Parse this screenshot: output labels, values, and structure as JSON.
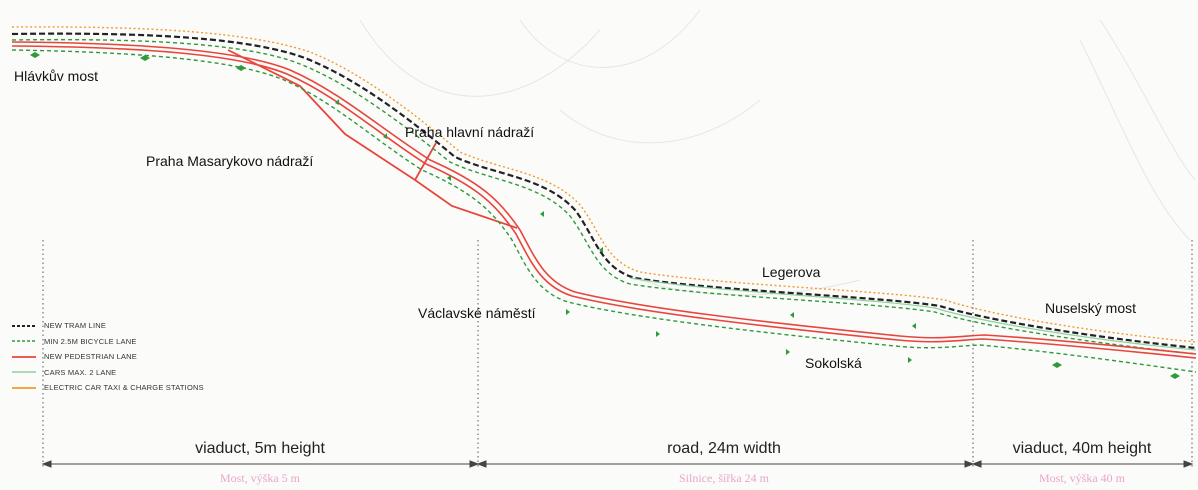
{
  "place_labels": {
    "hlavkuv_most": "Hlávkův most",
    "praha_hlavni": "Praha hlavní nádraží",
    "praha_masarykovo": "Praha Masarykovo nádraží",
    "vaclavske": "Václavské náměstí",
    "legerova": "Legerova",
    "nuselsky_most": "Nuselský most",
    "sokolska": "Sokolská"
  },
  "legend": [
    {
      "label": "NEW TRAM LINE",
      "style": "dashed",
      "color": "#222222"
    },
    {
      "label": "MIN 2.5M BICYCLE LANE",
      "style": "dashed",
      "color": "#2e9a3a"
    },
    {
      "label": "NEW PEDESTRIAN LANE",
      "style": "solid",
      "color": "#e8453c"
    },
    {
      "label": "CARS MAX. 2 LANE",
      "style": "solid",
      "color": "#8fd0a0"
    },
    {
      "label": "ELECTRIC CAR TAXI & CHARGE STATIONS",
      "style": "solid",
      "color": "#f39a2c"
    }
  ],
  "segments": [
    {
      "label": "viaduct, 5m height",
      "label_cz": "Most, výška 5 m"
    },
    {
      "label": "road, 24m width",
      "label_cz": "Silnice, šířka 24 m"
    },
    {
      "label": "viaduct, 40m height",
      "label_cz": "Most, výška 40 m"
    }
  ],
  "colors": {
    "tram": "#222222",
    "bicycle": "#2e9a3a",
    "pedestrian": "#e8453c",
    "cars": "#8fd0a0",
    "taxi": "#f39a2c"
  }
}
